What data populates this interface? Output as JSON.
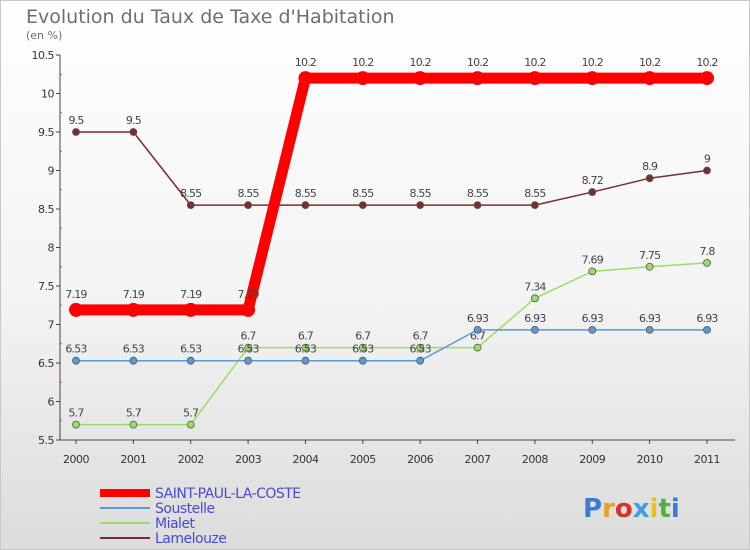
{
  "title": "Evolution du Taux de Taxe d'Habitation",
  "subtitle": "(en %)",
  "chart_data": {
    "type": "line",
    "x": [
      "2000",
      "2001",
      "2002",
      "2003",
      "2004",
      "2005",
      "2006",
      "2007",
      "2008",
      "2009",
      "2010",
      "2011"
    ],
    "ylim": [
      5.5,
      10.5
    ],
    "yticks": [
      "5.5",
      "6",
      "6.5",
      "7",
      "7.5",
      "8",
      "8.5",
      "9",
      "9.5",
      "10",
      "10.5"
    ],
    "grid": false,
    "legend_position": "bottom-left",
    "series": [
      {
        "name": "SAINT-PAUL-LA-COSTE",
        "color": "#ff0000",
        "values": [
          7.19,
          7.19,
          7.19,
          7.19,
          10.2,
          10.2,
          10.2,
          10.2,
          10.2,
          10.2,
          10.2,
          10.2
        ],
        "labels": [
          "7.19",
          "7.19",
          "7.19",
          "7.19",
          "10.2",
          "10.2",
          "10.2",
          "10.2",
          "10.2",
          "10.2",
          "10.2",
          "10.2"
        ]
      },
      {
        "name": "Soustelle",
        "color": "#5b9bd5",
        "values": [
          6.53,
          6.53,
          6.53,
          6.53,
          6.53,
          6.53,
          6.53,
          6.93,
          6.93,
          6.93,
          6.93,
          6.93
        ],
        "labels": [
          "6.53",
          "6.53",
          "6.53",
          "6.53",
          "6.53",
          "6.53",
          "6.53",
          "6.93",
          "6.93",
          "6.93",
          "6.93",
          "6.93"
        ]
      },
      {
        "name": "Mialet",
        "color": "#99dd66",
        "values": [
          5.7,
          5.7,
          5.7,
          6.7,
          6.7,
          6.7,
          6.7,
          6.7,
          7.34,
          7.69,
          7.75,
          7.8
        ],
        "labels": [
          "5.7",
          "5.7",
          "5.7",
          "6.7",
          "6.7",
          "6.7",
          "6.7",
          "6.7",
          "7.34",
          "7.69",
          "7.75",
          "7.8"
        ]
      },
      {
        "name": "Lamelouze",
        "color": "#7b2d2d",
        "values": [
          9.5,
          9.5,
          8.55,
          8.55,
          8.55,
          8.55,
          8.55,
          8.55,
          8.55,
          8.72,
          8.9,
          9
        ],
        "labels": [
          "9.5",
          "9.5",
          "8.55",
          "8.55",
          "8.55",
          "8.55",
          "8.55",
          "8.55",
          "8.55",
          "8.72",
          "8.9",
          "9"
        ]
      }
    ]
  },
  "logo": {
    "text": "Proxiti"
  }
}
